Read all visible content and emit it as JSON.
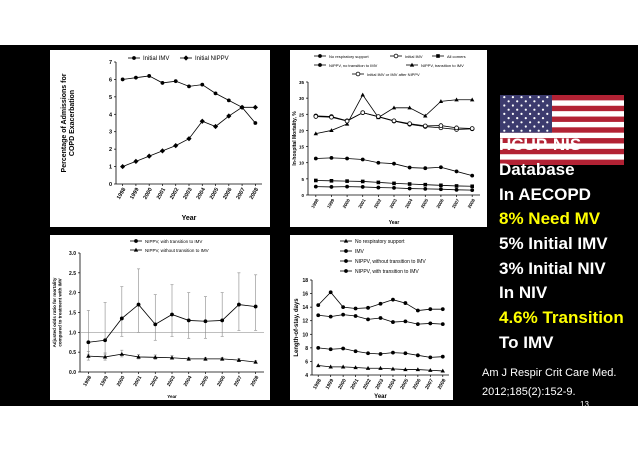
{
  "slide": {
    "background": "#000000",
    "bullets": [
      {
        "text": "HCUP-NIS",
        "highlight": false
      },
      {
        "text": "Database",
        "highlight": false
      },
      {
        "text": "In AECOPD",
        "highlight": false
      },
      {
        "text": "8% Need MV",
        "highlight": true
      },
      {
        "text": "5% Initial IMV",
        "highlight": false
      },
      {
        "text": "3% Initial NIV",
        "highlight": false
      },
      {
        "text": "In NIV",
        "highlight": false
      },
      {
        "text": "4.6% Transition",
        "highlight": true
      },
      {
        "text": "To IMV",
        "highlight": false
      }
    ],
    "citation_line1": "Am J Respir Crit Care Med.",
    "citation_line2": "2012;185(2):152-9.",
    "slide_number": "13",
    "flag_icon": "us-flag-icon",
    "highlight_color": "#ffff00",
    "text_color": "#ffffff"
  },
  "chart_data": [
    {
      "type": "line",
      "ylabel": "Percentage of Admissions for COPD Exacerbation",
      "xlabel": "Year",
      "x": [
        "1998",
        "1999",
        "2000",
        "2001",
        "2002",
        "2003",
        "2004",
        "2005",
        "2006",
        "2007",
        "2008"
      ],
      "ylim": [
        0,
        7
      ],
      "yticks": [
        0,
        1,
        2,
        3,
        4,
        5,
        6,
        7
      ],
      "series": [
        {
          "name": "Initial IMV",
          "marker": "circle",
          "values": [
            6.0,
            6.1,
            6.2,
            5.8,
            5.9,
            5.6,
            5.7,
            5.2,
            4.8,
            4.4,
            3.5
          ]
        },
        {
          "name": "Initial NIPPV",
          "marker": "diamond",
          "values": [
            1.0,
            1.3,
            1.6,
            1.9,
            2.2,
            2.6,
            3.6,
            3.3,
            3.9,
            4.4,
            4.4
          ]
        }
      ]
    },
    {
      "type": "line",
      "ylabel": "In-hospital Mortality, %",
      "xlabel": "Year",
      "x": [
        "1998",
        "1999",
        "2000",
        "2001",
        "2002",
        "2003",
        "2004",
        "2005",
        "2006",
        "2007",
        "2008"
      ],
      "ylim": [
        0,
        35
      ],
      "yticks": [
        0,
        5,
        10,
        15,
        20,
        25,
        30,
        35
      ],
      "series": [
        {
          "name": "No respiratory support",
          "values": [
            2.6,
            2.5,
            2.6,
            2.5,
            2.3,
            2.2,
            2.0,
            1.9,
            1.8,
            1.6,
            1.5
          ]
        },
        {
          "name": "Initial IMV",
          "values": [
            24.5,
            24.3,
            23.0,
            25.5,
            24.2,
            22.9,
            21.9,
            21.2,
            20.8,
            20.3,
            20.5
          ]
        },
        {
          "name": "All comers",
          "values": [
            4.5,
            4.4,
            4.3,
            4.2,
            3.9,
            3.6,
            3.4,
            3.2,
            3.0,
            2.8,
            2.7
          ]
        },
        {
          "name": "NIPPV, no transition to IMV",
          "values": [
            11.3,
            11.5,
            11.3,
            11.0,
            10.0,
            9.7,
            8.5,
            8.3,
            8.6,
            7.3,
            6.0
          ]
        },
        {
          "name": "NIPPV, transition to IMV",
          "values": [
            19.0,
            20.0,
            22.0,
            31.0,
            24.0,
            27.0,
            27.0,
            24.5,
            29.0,
            29.5,
            29.5
          ]
        },
        {
          "name": "Initial IMV or IMV after NIPPV",
          "values": [
            24.3,
            24.1,
            22.9,
            25.5,
            24.3,
            23.0,
            22.1,
            21.4,
            21.5,
            20.8,
            20.6
          ]
        }
      ]
    },
    {
      "type": "line",
      "ylabel": "Adjusted odds ratio for mortality compared to treatment with IMV",
      "xlabel": "Year",
      "x": [
        "1998",
        "1999",
        "2000",
        "2001",
        "2002",
        "2003",
        "2004",
        "2005",
        "2006",
        "2007",
        "2008"
      ],
      "ylim": [
        0,
        3.0
      ],
      "yticks": [
        0.0,
        0.5,
        1.0,
        1.5,
        2.0,
        2.5,
        3.0
      ],
      "reference_line": 1.0,
      "series": [
        {
          "name": "NIPPV, with transition to IMV",
          "values": [
            0.75,
            0.8,
            1.35,
            1.7,
            1.2,
            1.45,
            1.3,
            1.28,
            1.3,
            1.7,
            1.65
          ],
          "error_low": [
            0.45,
            0.45,
            0.9,
            1.0,
            0.8,
            0.9,
            0.85,
            0.85,
            0.9,
            1.05,
            1.05
          ],
          "error_high": [
            1.55,
            1.75,
            2.15,
            2.6,
            1.95,
            2.2,
            2.0,
            1.9,
            2.0,
            2.5,
            2.45
          ]
        },
        {
          "name": "NIPPV, without transition to IMV",
          "values": [
            0.4,
            0.38,
            0.45,
            0.38,
            0.37,
            0.36,
            0.33,
            0.33,
            0.33,
            0.3,
            0.25
          ],
          "error_low": [
            0.3,
            0.3,
            0.38,
            0.33,
            0.32,
            0.32,
            0.29,
            0.29,
            0.29,
            0.26,
            0.22
          ],
          "error_high": [
            0.52,
            0.48,
            0.55,
            0.44,
            0.43,
            0.41,
            0.37,
            0.37,
            0.37,
            0.34,
            0.29
          ]
        }
      ]
    },
    {
      "type": "line",
      "ylabel": "Length-of-stay, days",
      "xlabel": "Year",
      "x": [
        "1998",
        "1999",
        "2000",
        "2001",
        "2002",
        "2003",
        "2004",
        "2005",
        "2006",
        "2007",
        "2008"
      ],
      "ylim": [
        4,
        18
      ],
      "yticks": [
        4,
        6,
        8,
        10,
        12,
        14,
        16,
        18
      ],
      "series": [
        {
          "name": "No respiratory support",
          "values": [
            5.4,
            5.2,
            5.2,
            5.1,
            5.0,
            5.0,
            4.9,
            4.8,
            4.8,
            4.7,
            4.6
          ]
        },
        {
          "name": "IMV",
          "values": [
            12.8,
            12.6,
            12.9,
            12.7,
            12.2,
            12.4,
            11.8,
            11.9,
            11.5,
            11.6,
            11.5
          ]
        },
        {
          "name": "NIPPV, without transition to IMV",
          "values": [
            8.0,
            7.8,
            7.9,
            7.5,
            7.2,
            7.1,
            7.3,
            7.2,
            6.9,
            6.6,
            6.7
          ]
        },
        {
          "name": "NIPPV, with transition to IMV",
          "values": [
            14.3,
            16.2,
            14.0,
            13.8,
            13.9,
            14.5,
            15.1,
            14.6,
            13.5,
            13.7,
            13.7
          ]
        }
      ]
    }
  ]
}
